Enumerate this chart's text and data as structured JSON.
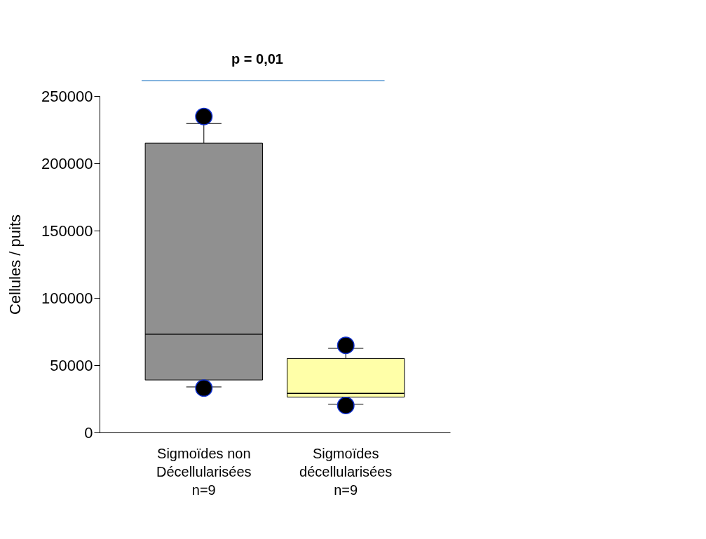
{
  "chart_data": {
    "type": "box",
    "ylabel": "Cellules / puits",
    "categories": [
      "Sigmoïdes non\nDécellularisées\nn=9",
      "Sigmoïdes\ndécellularisées\nn=9"
    ],
    "boxes": [
      {
        "low": 33900,
        "q1": 39000,
        "median": 73000,
        "q3": 215000,
        "high": 229500,
        "outliers": [
          234800,
          33000
        ]
      },
      {
        "low": 21000,
        "q1": 26300,
        "median": 29000,
        "q3": 55000,
        "high": 62500,
        "outliers": [
          64700,
          20100
        ]
      }
    ],
    "colors": [
      "#909090",
      "#ffffa8"
    ],
    "ylim": [
      0,
      250000
    ],
    "yticks": [
      0,
      50000,
      100000,
      150000,
      200000,
      250000
    ],
    "grid": false,
    "annotations": [
      "p = 0,01"
    ]
  }
}
